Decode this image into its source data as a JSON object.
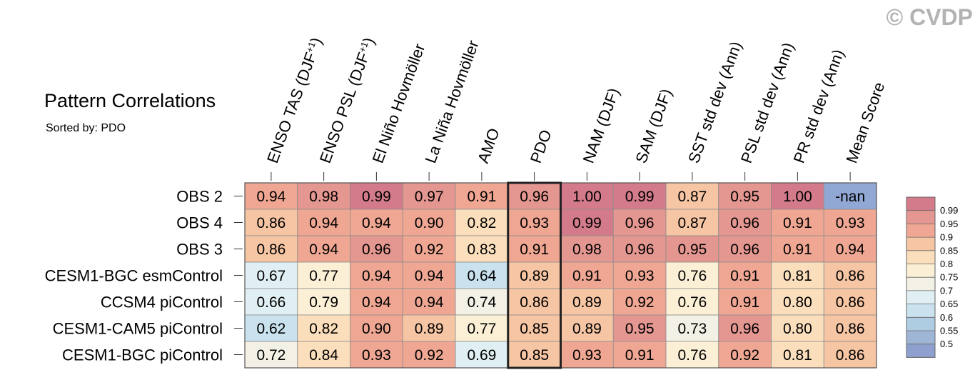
{
  "title": "Pattern Correlations",
  "subtitle": "Sorted by: PDO",
  "watermark": "© CVDP",
  "chart_data": {
    "type": "heatmap",
    "sorted_by": "PDO",
    "highlighted_column": "PDO",
    "columns": [
      {
        "label": "ENSO TAS (DJF",
        "sup": "+1",
        "tail": ")"
      },
      {
        "label": "ENSO PSL (DJF",
        "sup": "+1",
        "tail": ")"
      },
      {
        "label": "El Niño Hovmöller"
      },
      {
        "label": "La Niña Hovmöller"
      },
      {
        "label": "AMO"
      },
      {
        "label": "PDO"
      },
      {
        "label": "NAM (DJF)"
      },
      {
        "label": "SAM (DJF)"
      },
      {
        "label": "SST std dev (Ann)"
      },
      {
        "label": "PSL std dev (Ann)"
      },
      {
        "label": "PR std dev (Ann)"
      },
      {
        "label": "Mean Score"
      }
    ],
    "rows": [
      "OBS 2",
      "OBS 4",
      "OBS 3",
      "CESM1-BGC esmControl",
      "CCSM4 piControl",
      "CESM1-CAM5 piControl",
      "CESM1-BGC piControl"
    ],
    "values": [
      [
        "0.94",
        "0.98",
        "0.99",
        "0.97",
        "0.91",
        "0.96",
        "1.00",
        "0.99",
        "0.87",
        "0.95",
        "1.00",
        "-nan"
      ],
      [
        "0.86",
        "0.94",
        "0.94",
        "0.90",
        "0.82",
        "0.93",
        "0.99",
        "0.96",
        "0.87",
        "0.96",
        "0.91",
        "0.93"
      ],
      [
        "0.86",
        "0.94",
        "0.96",
        "0.92",
        "0.83",
        "0.91",
        "0.98",
        "0.96",
        "0.95",
        "0.96",
        "0.91",
        "0.94"
      ],
      [
        "0.67",
        "0.77",
        "0.94",
        "0.94",
        "0.64",
        "0.89",
        "0.91",
        "0.93",
        "0.76",
        "0.91",
        "0.81",
        "0.86"
      ],
      [
        "0.66",
        "0.79",
        "0.94",
        "0.94",
        "0.74",
        "0.86",
        "0.89",
        "0.92",
        "0.76",
        "0.91",
        "0.80",
        "0.86"
      ],
      [
        "0.62",
        "0.82",
        "0.90",
        "0.89",
        "0.77",
        "0.85",
        "0.89",
        "0.95",
        "0.73",
        "0.96",
        "0.80",
        "0.86"
      ],
      [
        "0.72",
        "0.84",
        "0.93",
        "0.92",
        "0.69",
        "0.85",
        "0.93",
        "0.91",
        "0.76",
        "0.92",
        "0.81",
        "0.86"
      ]
    ],
    "colorbar": {
      "levels": [
        "0.99",
        "0.95",
        "0.9",
        "0.85",
        "0.8",
        "0.75",
        "0.7",
        "0.65",
        "0.6",
        "0.55",
        "0.5"
      ],
      "bin_colors": [
        "#d47b8b",
        "#e49690",
        "#efa793",
        "#f6c5a4",
        "#fbdfbc",
        "#fbf0d6",
        "#f3f1e6",
        "#e0eff3",
        "#c9e2ee",
        "#afcde2",
        "#9fb5d6",
        "#8ea0cd"
      ],
      "nan_color": "#91a7d4"
    }
  }
}
